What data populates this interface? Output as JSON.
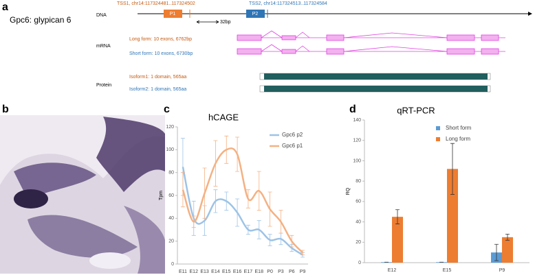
{
  "panel_labels": [
    "a",
    "b",
    "c",
    "d"
  ],
  "panel_a": {
    "gene": "Gpc6: glypican 6",
    "dna_label": "DNA",
    "mrna_label": "mRNA",
    "protein_label": "Protein",
    "tss1": "TSS1, chr14:117324481..117324502",
    "tss2": "TSS2, chr14:117324513..117324584",
    "p1": "P1",
    "p2": "P2",
    "distance": "32bp",
    "long_form": "Long form: 10 exons, 6762bp",
    "short_form": "Short form: 10 exons, 6730bp",
    "isoform1": "Isoform1: 1 domain, 565aa",
    "isoform2": "Isoform2: 1 domain, 565aa"
  },
  "chart_data": [
    {
      "type": "line",
      "title": "hCAGE",
      "ylabel": "Tpm",
      "categories": [
        "E11",
        "E12",
        "E13",
        "E14",
        "E15",
        "E16",
        "E17",
        "E18",
        "P0",
        "P3",
        "P6",
        "P9"
      ],
      "series": [
        {
          "name": "Gpc6 p2",
          "color": "#9dc3e6",
          "values": [
            85,
            40,
            38,
            55,
            55,
            45,
            30,
            30,
            21,
            22,
            14,
            8
          ],
          "errors": [
            25,
            15,
            13,
            10,
            8,
            12,
            4,
            8,
            5,
            5,
            3,
            2
          ]
        },
        {
          "name": "Gpc6 p1",
          "color": "#f4b183",
          "values": [
            65,
            37,
            62,
            88,
            100,
            96,
            57,
            64,
            48,
            37,
            20,
            10
          ],
          "errors": [
            15,
            5,
            22,
            20,
            12,
            15,
            8,
            17,
            15,
            10,
            5,
            2
          ]
        }
      ],
      "ylim": [
        0,
        120
      ],
      "yticks": [
        0,
        20,
        40,
        60,
        80,
        100,
        120
      ],
      "legend": "upper-right"
    },
    {
      "type": "bar",
      "title": "qRT-PCR",
      "ylabel": "RQ",
      "categories": [
        "E12",
        "E15",
        "P9"
      ],
      "series": [
        {
          "name": "Short form",
          "color": "#5b9bd5",
          "values": [
            0.5,
            0.5,
            10
          ],
          "errors": [
            0,
            0,
            8
          ]
        },
        {
          "name": "Long form",
          "color": "#ed7d31",
          "values": [
            45,
            92,
            25
          ],
          "errors": [
            7,
            25,
            3
          ]
        }
      ],
      "ylim": [
        0,
        140
      ],
      "yticks": [
        0,
        20,
        40,
        60,
        80,
        100,
        120,
        140
      ],
      "legend": "upper-right"
    }
  ]
}
